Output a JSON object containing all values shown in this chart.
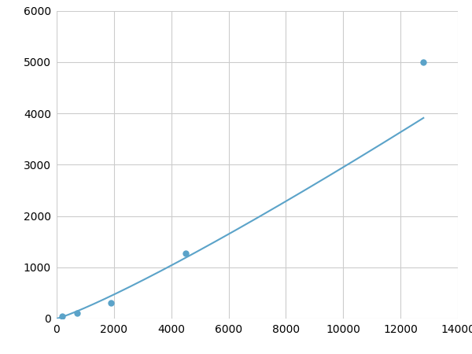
{
  "x_data": [
    200,
    700,
    1900,
    4500,
    12800
  ],
  "y_data": [
    50,
    100,
    310,
    1270,
    5000
  ],
  "line_color": "#5ba3c9",
  "marker_color": "#5ba3c9",
  "marker_size": 6,
  "xlim": [
    0,
    14000
  ],
  "ylim": [
    0,
    6000
  ],
  "xticks": [
    0,
    2000,
    4000,
    6000,
    8000,
    10000,
    12000,
    14000
  ],
  "yticks": [
    0,
    1000,
    2000,
    3000,
    4000,
    5000,
    6000
  ],
  "grid_color": "#cccccc",
  "background_color": "#ffffff",
  "tick_fontsize": 10
}
